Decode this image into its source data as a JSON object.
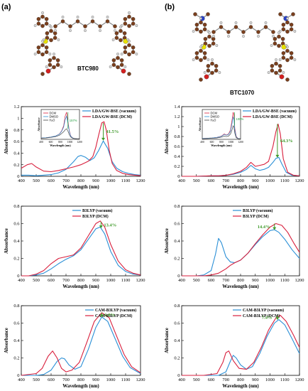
{
  "panel_labels": {
    "a": "(a)",
    "b": "(b)"
  },
  "molecules": {
    "a": "BTC980",
    "b": "BTC1070"
  },
  "colors": {
    "series1": "#2a8fd6",
    "series2": "#d81e3c",
    "inset_green": "#1f9c3a",
    "annot_green": "#3f9a2a",
    "atom_c": "#7a3f1d",
    "atom_h": "#d9d9d9",
    "atom_s": "#e8e000",
    "atom_o": "#d42020",
    "atom_n": "#2840c8"
  },
  "chart_data": [
    {
      "id": "a1",
      "type": "line",
      "xlabel": "Wavelength (nm)",
      "ylabel": "Absorbance",
      "xlim": [
        400,
        1200
      ],
      "ylim": [
        0,
        1.2
      ],
      "xticks": [
        400,
        500,
        600,
        700,
        800,
        900,
        1000,
        1100,
        1200
      ],
      "yticks": [
        0,
        0.2,
        0.4,
        0.6,
        0.8,
        1.0,
        1.2
      ],
      "legend": [
        "LDA/GW-BSE (vacuum)",
        "LDA/GW-BSE (DCM)"
      ],
      "legend_position": "top-center",
      "annotation": "41.5%",
      "annotation_arrow_x": 950,
      "annotation_arrow_y": [
        0.92,
        0.62
      ],
      "series": [
        {
          "name": "LDA/GW-BSE (vacuum)",
          "x": [
            400,
            450,
            500,
            550,
            600,
            650,
            700,
            750,
            780,
            800,
            830,
            860,
            890,
            920,
            950,
            980,
            1010,
            1040,
            1080,
            1120,
            1160,
            1200
          ],
          "y": [
            0.02,
            0.02,
            0.01,
            0.02,
            0.03,
            0.06,
            0.12,
            0.25,
            0.34,
            0.36,
            0.33,
            0.27,
            0.32,
            0.45,
            0.61,
            0.48,
            0.25,
            0.14,
            0.08,
            0.05,
            0.03,
            0.02
          ]
        },
        {
          "name": "LDA/GW-BSE (DCM)",
          "x": [
            400,
            440,
            470,
            500,
            550,
            600,
            650,
            700,
            750,
            800,
            850,
            880,
            900,
            920,
            940,
            955,
            970,
            990,
            1010,
            1040,
            1080,
            1120,
            1160,
            1200
          ],
          "y": [
            0.14,
            0.2,
            0.22,
            0.16,
            0.09,
            0.08,
            0.1,
            0.13,
            0.16,
            0.2,
            0.26,
            0.34,
            0.5,
            0.72,
            0.92,
            0.94,
            0.8,
            0.45,
            0.22,
            0.1,
            0.05,
            0.03,
            0.02,
            0.01
          ]
        }
      ],
      "inset": {
        "xlabel": "Wavelength (nm)",
        "ylabel": "Absorbance",
        "xlim": [
          400,
          1200
        ],
        "xticks": [
          400,
          600,
          800,
          1000,
          1200
        ],
        "legend": [
          "DCM",
          "DMSO",
          "H₂O"
        ],
        "annotation": "157%",
        "series": [
          {
            "name": "DCM",
            "x": [
              400,
              500,
              600,
              700,
              780,
              830,
              870,
              900,
              930,
              960,
              990,
              1020,
              1060,
              1100,
              1150,
              1200
            ],
            "y": [
              0.05,
              0.06,
              0.08,
              0.12,
              0.2,
              0.32,
              0.5,
              0.85,
              1.0,
              0.65,
              0.3,
              0.12,
              0.05,
              0.03,
              0.02,
              0.02
            ]
          },
          {
            "name": "DMSO",
            "x": [
              400,
              500,
              600,
              700,
              780,
              830,
              870,
              900,
              930,
              960,
              990,
              1020,
              1060,
              1100,
              1150,
              1200
            ],
            "y": [
              0.05,
              0.06,
              0.08,
              0.12,
              0.19,
              0.3,
              0.45,
              0.72,
              0.85,
              0.58,
              0.27,
              0.11,
              0.05,
              0.03,
              0.02,
              0.02
            ]
          },
          {
            "name": "H₂O",
            "x": [
              400,
              500,
              600,
              700,
              780,
              830,
              870,
              900,
              930,
              960,
              990,
              1020,
              1060,
              1100,
              1150,
              1200
            ],
            "y": [
              0.04,
              0.05,
              0.07,
              0.1,
              0.15,
              0.22,
              0.28,
              0.35,
              0.39,
              0.3,
              0.16,
              0.08,
              0.04,
              0.03,
              0.02,
              0.02
            ]
          }
        ]
      }
    },
    {
      "id": "b1",
      "type": "line",
      "xlabel": "Wavelength (nm)",
      "ylabel": "Absorbance",
      "xlim": [
        400,
        1200
      ],
      "ylim": [
        0,
        1.4
      ],
      "xticks": [
        400,
        500,
        600,
        700,
        800,
        900,
        1000,
        1100,
        1200
      ],
      "yticks": [
        0,
        0.2,
        0.4,
        0.6,
        0.8,
        1.0,
        1.2,
        1.4
      ],
      "legend": [
        "LDA/GW-BSE (vacuum)",
        "LDA/GW-BSE (DCM)"
      ],
      "legend_position": "top-center",
      "annotation": "64.3%",
      "annotation_arrow_x": 1050,
      "annotation_arrow_y": [
        1.05,
        0.38
      ],
      "series": [
        {
          "name": "LDA/GW-BSE (vacuum)",
          "x": [
            400,
            500,
            600,
            650,
            700,
            750,
            800,
            840,
            870,
            900,
            930,
            960,
            990,
            1020,
            1040,
            1060,
            1080,
            1110,
            1150,
            1200
          ],
          "y": [
            0.0,
            0.0,
            0.01,
            0.01,
            0.02,
            0.04,
            0.08,
            0.14,
            0.22,
            0.15,
            0.12,
            0.14,
            0.18,
            0.28,
            0.36,
            0.38,
            0.25,
            0.08,
            0.02,
            0.01
          ]
        },
        {
          "name": "LDA/GW-BSE (DCM)",
          "x": [
            400,
            500,
            600,
            650,
            700,
            750,
            800,
            840,
            870,
            900,
            930,
            960,
            990,
            1020,
            1040,
            1055,
            1070,
            1090,
            1120,
            1160,
            1200
          ],
          "y": [
            0.0,
            0.0,
            0.01,
            0.01,
            0.02,
            0.05,
            0.1,
            0.18,
            0.28,
            0.2,
            0.22,
            0.24,
            0.3,
            0.6,
            0.9,
            1.05,
            0.85,
            0.35,
            0.08,
            0.02,
            0.01
          ]
        }
      ],
      "inset": {
        "xlabel": "Wavelength (nm)",
        "ylabel": "Absorbance",
        "xlim": [
          400,
          1200
        ],
        "xticks": [
          400,
          600,
          800,
          1000,
          1200
        ],
        "legend": [
          "DCM",
          "DMSO",
          "H₂O"
        ],
        "annotation": "100%",
        "series": [
          {
            "name": "DCM",
            "x": [
              400,
              500,
              600,
              700,
              800,
              860,
              900,
              950,
              990,
              1020,
              1045,
              1060,
              1080,
              1110,
              1150,
              1200
            ],
            "y": [
              0.03,
              0.04,
              0.05,
              0.07,
              0.12,
              0.2,
              0.16,
              0.2,
              0.35,
              0.7,
              1.0,
              0.9,
              0.4,
              0.1,
              0.03,
              0.02
            ]
          },
          {
            "name": "DMSO",
            "x": [
              400,
              500,
              600,
              700,
              800,
              860,
              900,
              950,
              990,
              1020,
              1045,
              1060,
              1080,
              1110,
              1150,
              1200
            ],
            "y": [
              0.03,
              0.04,
              0.05,
              0.07,
              0.11,
              0.18,
              0.15,
              0.18,
              0.3,
              0.58,
              0.82,
              0.74,
              0.33,
              0.08,
              0.03,
              0.02
            ]
          },
          {
            "name": "H₂O",
            "x": [
              400,
              500,
              600,
              700,
              800,
              860,
              900,
              950,
              990,
              1020,
              1045,
              1060,
              1080,
              1110,
              1150,
              1200
            ],
            "y": [
              0.02,
              0.03,
              0.04,
              0.05,
              0.08,
              0.12,
              0.1,
              0.12,
              0.2,
              0.35,
              0.5,
              0.46,
              0.22,
              0.06,
              0.02,
              0.02
            ]
          }
        ]
      }
    },
    {
      "id": "a2",
      "type": "line",
      "xlabel": "Wavelength (nm)",
      "ylabel": "Absorbance",
      "xlim": [
        400,
        1200
      ],
      "ylim": [
        0,
        0.8
      ],
      "xticks": [
        400,
        500,
        600,
        700,
        800,
        900,
        1000,
        1100,
        1200
      ],
      "yticks": [
        0,
        0.2,
        0.4,
        0.6,
        0.8
      ],
      "legend": [
        "B3LYP (vacuum)",
        "B3LYP (DCM)"
      ],
      "legend_position": "top-center",
      "annotation": "13.4%",
      "annotation_arrow_x": 935,
      "annotation_arrow_y": [
        0.62,
        0.55
      ],
      "series": [
        {
          "name": "B3LYP (vacuum)",
          "x": [
            400,
            450,
            500,
            550,
            600,
            650,
            700,
            750,
            800,
            850,
            900,
            930,
            960,
            1000,
            1050,
            1100,
            1150,
            1200
          ],
          "y": [
            0.0,
            0.0,
            0.01,
            0.03,
            0.08,
            0.14,
            0.19,
            0.23,
            0.3,
            0.42,
            0.54,
            0.56,
            0.48,
            0.28,
            0.12,
            0.05,
            0.02,
            0.01
          ]
        },
        {
          "name": "B3LYP (DCM)",
          "x": [
            400,
            450,
            500,
            550,
            600,
            650,
            700,
            750,
            800,
            850,
            900,
            930,
            960,
            1000,
            1050,
            1100,
            1150,
            1200
          ],
          "y": [
            0.0,
            0.0,
            0.02,
            0.06,
            0.14,
            0.2,
            0.22,
            0.24,
            0.32,
            0.46,
            0.6,
            0.63,
            0.56,
            0.36,
            0.17,
            0.07,
            0.03,
            0.01
          ]
        }
      ]
    },
    {
      "id": "b2",
      "type": "line",
      "xlabel": "Wavelength (nm)",
      "ylabel": "Absorbance",
      "xlim": [
        400,
        1200
      ],
      "ylim": [
        0,
        0.8
      ],
      "xticks": [
        400,
        500,
        600,
        700,
        800,
        900,
        1000,
        1100,
        1200
      ],
      "yticks": [
        0,
        0.2,
        0.4,
        0.6,
        0.8
      ],
      "legend": [
        "B3LYP (vacuum)",
        "B3LYP (DCM)"
      ],
      "legend_position": "top-center",
      "annotation": "14.4%",
      "annotation_arrow_x": 1030,
      "annotation_arrow_y": [
        0.6,
        0.53
      ],
      "series": [
        {
          "name": "B3LYP (vacuum)",
          "x": [
            400,
            500,
            550,
            600,
            630,
            650,
            670,
            700,
            730,
            760,
            800,
            850,
            900,
            950,
            1000,
            1030,
            1060,
            1100,
            1150,
            1200
          ],
          "y": [
            0.0,
            0.0,
            0.01,
            0.06,
            0.25,
            0.43,
            0.38,
            0.22,
            0.16,
            0.15,
            0.18,
            0.26,
            0.36,
            0.45,
            0.52,
            0.53,
            0.5,
            0.42,
            0.3,
            0.2
          ]
        },
        {
          "name": "B3LYP (DCM)",
          "x": [
            400,
            500,
            550,
            600,
            650,
            700,
            730,
            760,
            800,
            850,
            900,
            950,
            1000,
            1040,
            1080,
            1120,
            1160,
            1200
          ],
          "y": [
            0.0,
            0.0,
            0.0,
            0.01,
            0.03,
            0.08,
            0.12,
            0.15,
            0.18,
            0.26,
            0.37,
            0.47,
            0.56,
            0.6,
            0.58,
            0.5,
            0.38,
            0.27
          ]
        }
      ]
    },
    {
      "id": "a3",
      "type": "line",
      "xlabel": "Wavelength (nm)",
      "ylabel": "Absorbance",
      "xlim": [
        400,
        1200
      ],
      "ylim": [
        0,
        0.8
      ],
      "xticks": [
        400,
        500,
        600,
        700,
        800,
        900,
        1000,
        1100,
        1200
      ],
      "yticks": [
        0,
        0.2,
        0.4,
        0.6,
        0.8
      ],
      "legend": [
        "CAM-B3LYP (vacuum)",
        "CAM-B3LYP (DCM)"
      ],
      "legend_position": "top-right",
      "annotation": "6.8%",
      "annotation_arrow_x": 940,
      "annotation_arrow_y": [
        0.72,
        0.67
      ],
      "series": [
        {
          "name": "CAM-B3LYP (vacuum)",
          "x": [
            400,
            500,
            550,
            600,
            640,
            670,
            690,
            720,
            760,
            800,
            850,
            900,
            940,
            980,
            1030,
            1080,
            1130,
            1200
          ],
          "y": [
            0.0,
            0.0,
            0.01,
            0.06,
            0.16,
            0.2,
            0.19,
            0.12,
            0.07,
            0.1,
            0.3,
            0.55,
            0.67,
            0.62,
            0.42,
            0.22,
            0.09,
            0.02
          ]
        },
        {
          "name": "CAM-B3LYP (DCM)",
          "x": [
            400,
            500,
            540,
            580,
            610,
            640,
            670,
            700,
            740,
            790,
            840,
            890,
            940,
            990,
            1040,
            1090,
            1140,
            1200
          ],
          "y": [
            0.0,
            0.02,
            0.08,
            0.22,
            0.28,
            0.2,
            0.08,
            0.04,
            0.06,
            0.15,
            0.38,
            0.62,
            0.72,
            0.66,
            0.45,
            0.24,
            0.1,
            0.03
          ]
        }
      ]
    },
    {
      "id": "b3",
      "type": "line",
      "xlabel": "Wavelength (nm)",
      "ylabel": "Absorbance",
      "xlim": [
        400,
        1200
      ],
      "ylim": [
        0,
        0.8
      ],
      "xticks": [
        400,
        500,
        600,
        700,
        800,
        900,
        1000,
        1100,
        1200
      ],
      "yticks": [
        0,
        0.2,
        0.4,
        0.6,
        0.8
      ],
      "legend": [
        "CAM-B3LYP (vacuum)",
        "CAM-B3LYP (DCM)"
      ],
      "legend_position": "top-center",
      "annotation": "7.4%",
      "annotation_arrow_x": 1050,
      "annotation_arrow_y": [
        0.69,
        0.64
      ],
      "series": [
        {
          "name": "CAM-B3LYP (vacuum)",
          "x": [
            400,
            550,
            650,
            700,
            730,
            750,
            770,
            800,
            840,
            880,
            930,
            980,
            1030,
            1060,
            1100,
            1150,
            1200
          ],
          "y": [
            0.0,
            0.0,
            0.0,
            0.04,
            0.16,
            0.23,
            0.2,
            0.12,
            0.07,
            0.1,
            0.25,
            0.45,
            0.6,
            0.64,
            0.58,
            0.42,
            0.25
          ]
        },
        {
          "name": "CAM-B3LYP (DCM)",
          "x": [
            400,
            550,
            640,
            680,
            700,
            720,
            750,
            790,
            840,
            890,
            940,
            990,
            1040,
            1070,
            1110,
            1160,
            1200
          ],
          "y": [
            0.0,
            0.0,
            0.02,
            0.15,
            0.26,
            0.28,
            0.17,
            0.08,
            0.07,
            0.15,
            0.32,
            0.52,
            0.66,
            0.69,
            0.62,
            0.46,
            0.32
          ]
        }
      ]
    }
  ]
}
